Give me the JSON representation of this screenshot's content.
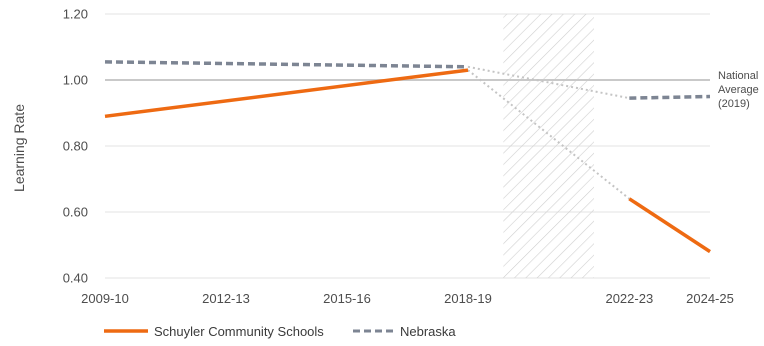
{
  "chart_data": {
    "type": "line",
    "ylabel": "Learning Rate",
    "ylim": [
      0.4,
      1.2
    ],
    "y_ticks": [
      "0.40",
      "0.60",
      "0.80",
      "1.00",
      "1.20"
    ],
    "x_ticks": [
      "2009-10",
      "2012-13",
      "2015-16",
      "2018-19",
      "2022-23",
      "2024-25"
    ],
    "reference_line": {
      "value": 1.0,
      "label_lines": [
        "National",
        "Average",
        "(2019)"
      ]
    },
    "shaded_period": {
      "from": "2019-20",
      "to": "2021-22",
      "pattern": "diagonal hatch"
    },
    "series": [
      {
        "name": "Schuyler Community Schools",
        "color": "#ee6a12",
        "style": "solid",
        "segments": [
          {
            "x": [
              "2009-10",
              "2018-19"
            ],
            "y": [
              0.89,
              1.03
            ]
          },
          {
            "x": [
              "2022-23",
              "2024-25"
            ],
            "y": [
              0.64,
              0.48
            ]
          }
        ],
        "gap_connector": {
          "x": [
            "2018-19",
            "2022-23"
          ],
          "y": [
            1.03,
            0.64
          ]
        }
      },
      {
        "name": "Nebraska",
        "color": "#7d8593",
        "style": "dashed",
        "segments": [
          {
            "x": [
              "2009-10",
              "2018-19"
            ],
            "y": [
              1.055,
              1.04
            ]
          },
          {
            "x": [
              "2022-23",
              "2024-25"
            ],
            "y": [
              0.945,
              0.95
            ]
          }
        ],
        "gap_connector": {
          "x": [
            "2018-19",
            "2022-23"
          ],
          "y": [
            1.04,
            0.945
          ]
        }
      }
    ],
    "legend_placement": "bottom-left",
    "grid": true
  }
}
